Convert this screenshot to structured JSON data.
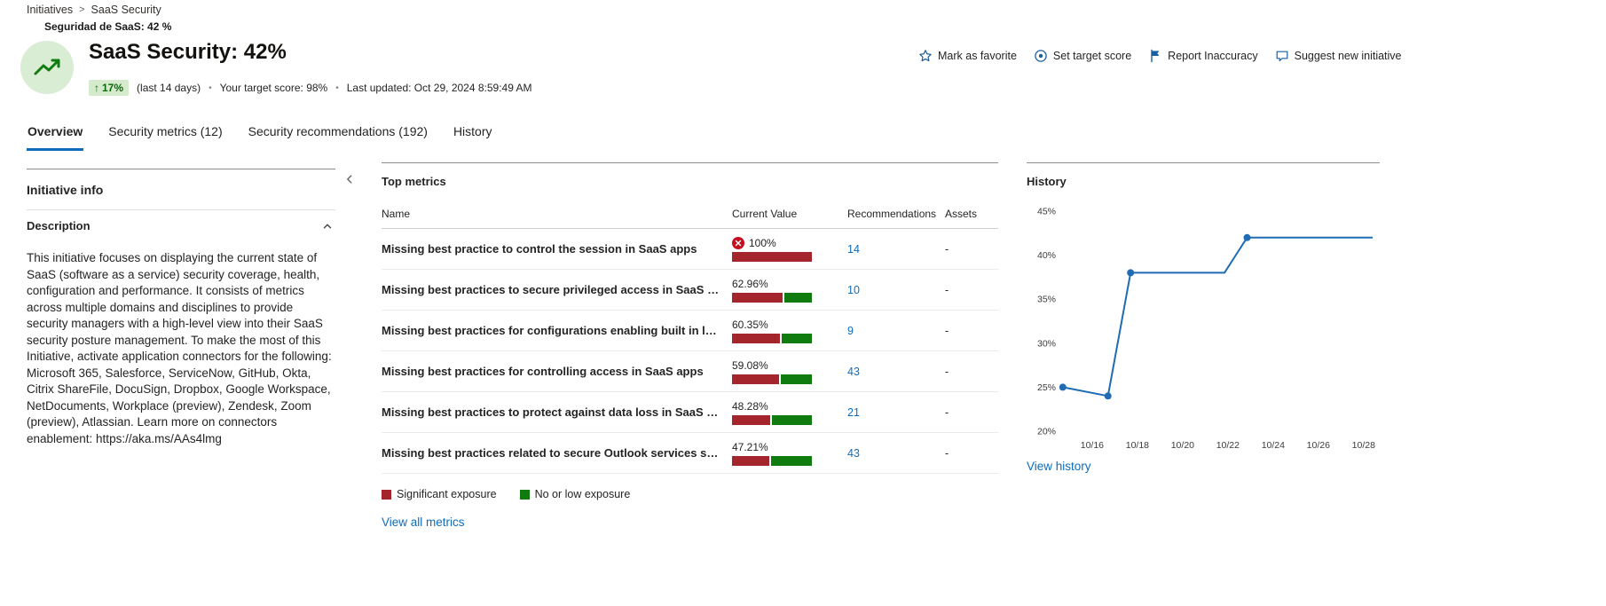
{
  "breadcrumb": {
    "items": [
      "Initiatives",
      "SaaS Security"
    ],
    "separator": ">"
  },
  "sub_label": "Seguridad de SaaS: 42 %",
  "header": {
    "title": "SaaS Security: 42%",
    "trend": {
      "arrow": "↑",
      "value": "17%",
      "note": "(last 14 days)"
    },
    "separator": "•",
    "target_score": "Your target score: 98%",
    "last_updated": "Last updated: Oct 29, 2024 8:59:49 AM",
    "actions": [
      {
        "label": "Mark as favorite",
        "icon": "star-icon"
      },
      {
        "label": "Set target score",
        "icon": "target-icon"
      },
      {
        "label": "Report Inaccuracy",
        "icon": "flag-icon"
      },
      {
        "label": "Suggest new initiative",
        "icon": "comment-icon"
      }
    ]
  },
  "tabs": [
    {
      "label": "Overview",
      "active": true
    },
    {
      "label": "Security metrics (12)",
      "active": false
    },
    {
      "label": "Security recommendations (192)",
      "active": false
    },
    {
      "label": "History",
      "active": false
    }
  ],
  "initiative_info": {
    "title": "Initiative info",
    "section_title": "Description",
    "description": "This initiative focuses on displaying the current state of SaaS (software as a service) security coverage, health, configuration and performance. It consists of metrics across multiple domains and disciplines to provide security managers with a high-level view into their SaaS security posture management. To make the most of this Initiative, activate application connectors for the following: Microsoft 365, Salesforce, ServiceNow, GitHub, Okta, Citrix ShareFile, DocuSign, Dropbox, Google Workspace, NetDocuments, Workplace (preview), Zendesk, Zoom (preview), Atlassian. Learn more on connectors enablement: https://aka.ms/AAs4lmg"
  },
  "top_metrics": {
    "title": "Top metrics",
    "columns": [
      "Name",
      "Current Value",
      "Recommendations",
      "Assets"
    ],
    "rows": [
      {
        "name": "Missing best practice to control the session in SaaS apps",
        "value": "100%",
        "pct": 100,
        "critical": true,
        "recommendations": "14",
        "assets": "-"
      },
      {
        "name": "Missing best practices to secure privileged access in SaaS apps",
        "value": "62.96%",
        "pct": 62.96,
        "critical": false,
        "recommendations": "10",
        "assets": "-"
      },
      {
        "name": "Missing best practices for configurations enabling built in logging a...",
        "value": "60.35%",
        "pct": 60.35,
        "critical": false,
        "recommendations": "9",
        "assets": "-"
      },
      {
        "name": "Missing best practices for controlling access in SaaS apps",
        "value": "59.08%",
        "pct": 59.08,
        "critical": false,
        "recommendations": "43",
        "assets": "-"
      },
      {
        "name": "Missing best practices to protect against data loss in SaaS apps",
        "value": "48.28%",
        "pct": 48.28,
        "critical": false,
        "recommendations": "21",
        "assets": "-"
      },
      {
        "name": "Missing best practices related to secure Outlook services settings",
        "value": "47.21%",
        "pct": 47.21,
        "critical": false,
        "recommendations": "43",
        "assets": "-"
      }
    ],
    "legend": [
      {
        "label": "Significant exposure",
        "color": "#a4262c"
      },
      {
        "label": "No or low exposure",
        "color": "#107c10"
      }
    ],
    "view_all_label": "View all metrics"
  },
  "history_panel": {
    "title": "History",
    "view_link": "View history"
  },
  "chart_data": {
    "type": "line",
    "title": "History",
    "line_color": "#1f6cb5",
    "grid": "none",
    "legend_position": "none",
    "y_range": [
      20,
      45
    ],
    "x_range_days": [
      14.67,
      28.4
    ],
    "y_ticks": [
      {
        "value": 45,
        "label": "45%"
      },
      {
        "value": 40,
        "label": "40%"
      },
      {
        "value": 35,
        "label": "35%"
      },
      {
        "value": 30,
        "label": "30%"
      },
      {
        "value": 25,
        "label": "25%"
      },
      {
        "value": 20,
        "label": "20%"
      }
    ],
    "x_ticks": [
      {
        "day": 16,
        "label": "10/16"
      },
      {
        "day": 18,
        "label": "10/18"
      },
      {
        "day": 20,
        "label": "10/20"
      },
      {
        "day": 22,
        "label": "10/22"
      },
      {
        "day": 24,
        "label": "10/24"
      },
      {
        "day": 26,
        "label": "10/26"
      },
      {
        "day": 28,
        "label": "10/28"
      }
    ],
    "series": [
      {
        "points": [
          {
            "day": 14.7,
            "value": 25,
            "dot": true
          },
          {
            "day": 16.7,
            "value": 24,
            "dot": true
          },
          {
            "day": 17.7,
            "value": 38,
            "dot": true
          },
          {
            "day": 21.85,
            "value": 38,
            "dot": false
          },
          {
            "day": 22.85,
            "value": 42,
            "dot": true
          },
          {
            "day": 28.4,
            "value": 42,
            "dot": false
          }
        ]
      }
    ]
  }
}
